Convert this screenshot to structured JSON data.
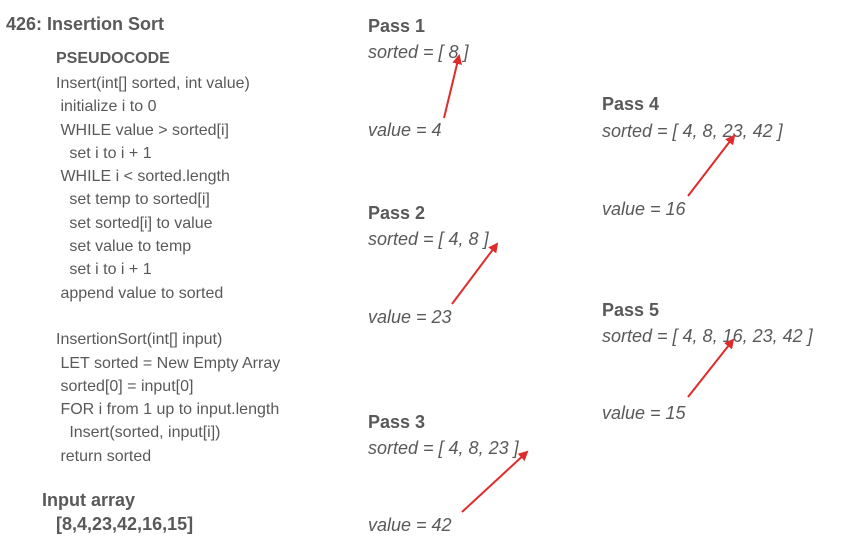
{
  "title": "426: Insertion Sort",
  "pseudocode": {
    "heading": "PSEUDOCODE",
    "lines": [
      "Insert(int[] sorted, int value)",
      " initialize i to 0",
      " WHILE value > sorted[i]",
      "   set i to i + 1",
      " WHILE i < sorted.length",
      "   set temp to sorted[i]",
      "   set sorted[i] to value",
      "   set value to temp",
      "   set i to i + 1",
      " append value to sorted",
      "",
      "InsertionSort(int[] input)",
      " LET sorted = New Empty Array",
      " sorted[0] = input[0]",
      " FOR i from 1 up to input.length",
      "   Insert(sorted, input[i])",
      " return sorted"
    ]
  },
  "input_array": {
    "label": "Input array",
    "value": "[8,4,23,42,16,15]"
  },
  "passes": [
    {
      "title": "Pass 1",
      "sorted": "sorted = [ 8 ]",
      "value": "value = 4"
    },
    {
      "title": "Pass 2",
      "sorted": "sorted = [ 4, 8 ]",
      "value": "value = 23"
    },
    {
      "title": "Pass 3",
      "sorted": "sorted = [ 4, 8, 23 ]",
      "value": "value = 42"
    },
    {
      "title": "Pass 4",
      "sorted": "sorted = [ 4, 8, 23, 42 ]",
      "value": "value = 16"
    },
    {
      "title": "Pass 5",
      "sorted": "sorted = [ 4, 8, 16, 23, 42 ]",
      "value": "value = 15"
    }
  ],
  "colors": {
    "text": "#595959",
    "arrow": "#e02b2b"
  }
}
